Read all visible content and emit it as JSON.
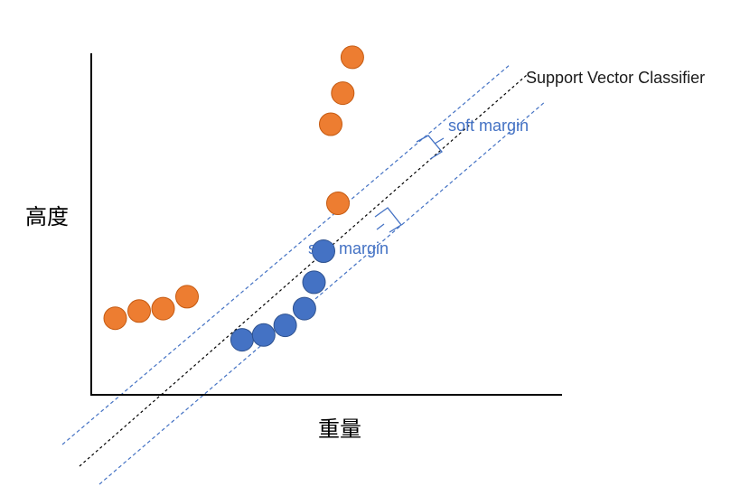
{
  "diagram": {
    "ylabel": "高度",
    "xlabel": "重量",
    "classifier_label": "Support Vector Classifier",
    "margin_label_top": "soft margin",
    "margin_label_bottom": "soft margin"
  },
  "colors": {
    "orange_fill": "#ED7D31",
    "orange_stroke": "#C55A11",
    "blue_fill": "#4472C4",
    "blue_stroke": "#2F528F",
    "margin_line": "#4472C4",
    "classifier_line": "#000000",
    "axis": "#000000",
    "margin_text": "#4472C4"
  },
  "chart_data": {
    "type": "scatter",
    "xlabel": "重量",
    "ylabel": "高度",
    "series": [
      {
        "points": [
          {
            "x": 1.0,
            "y": 3.2
          },
          {
            "x": 2.0,
            "y": 3.5
          },
          {
            "x": 3.0,
            "y": 3.6
          },
          {
            "x": 4.0,
            "y": 4.1
          },
          {
            "x": 10.3,
            "y": 8.0
          },
          {
            "x": 10.0,
            "y": 11.3
          },
          {
            "x": 10.5,
            "y": 12.6
          },
          {
            "x": 10.9,
            "y": 14.1
          }
        ]
      },
      {
        "points": [
          {
            "x": 6.3,
            "y": 2.3
          },
          {
            "x": 7.2,
            "y": 2.5
          },
          {
            "x": 8.1,
            "y": 2.9
          },
          {
            "x": 8.9,
            "y": 3.6
          },
          {
            "x": 9.3,
            "y": 4.7
          },
          {
            "x": 9.7,
            "y": 6.0
          }
        ]
      }
    ]
  }
}
